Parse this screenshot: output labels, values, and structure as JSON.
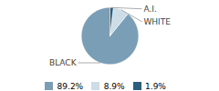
{
  "chart_data": {
    "type": "pie",
    "categories": [
      "BLACK",
      "WHITE",
      "A.I."
    ],
    "values": [
      89.2,
      8.9,
      1.9
    ],
    "value_labels": [
      "89.2%",
      "8.9%",
      "1.9%"
    ],
    "colors": [
      "#7a9eb5",
      "#ccdde8",
      "#2e5f7a"
    ],
    "legend": "bottom"
  }
}
